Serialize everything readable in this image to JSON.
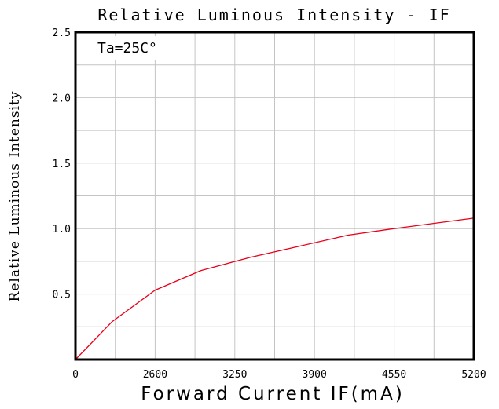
{
  "chart_data": {
    "type": "line",
    "title": "Relative Luminous Intensity - IF",
    "xlabel": "Forward Current IF(mA)",
    "ylabel": "Relative Luminous Intensity",
    "annotation": "Ta=25C°",
    "x_tick_labels": [
      "0",
      "2600",
      "3250",
      "3900",
      "4550",
      "5200"
    ],
    "y_tick_labels": [
      "0.5",
      "1.0",
      "1.5",
      "2.0",
      "2.5"
    ],
    "xlim": [
      1950,
      5200
    ],
    "ylim": [
      0,
      2.5
    ],
    "grid": true,
    "series": [
      {
        "color": "#e8001a",
        "x": [
          1950,
          2250,
          2600,
          2975,
          3375,
          3750,
          4175,
          4550,
          5200
        ],
        "y": [
          0,
          0.29,
          0.53,
          0.68,
          0.78,
          0.86,
          0.95,
          1.0,
          1.08
        ]
      }
    ]
  }
}
